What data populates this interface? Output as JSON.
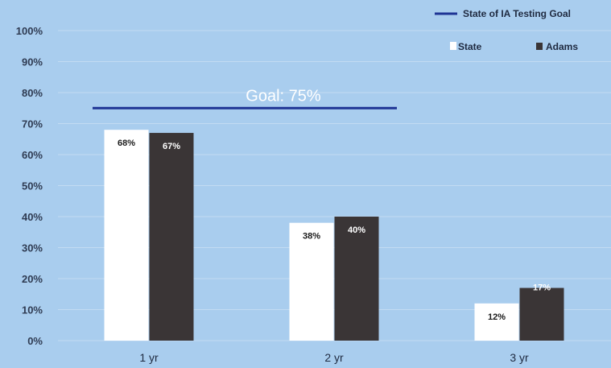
{
  "chart_data": {
    "type": "bar",
    "categories": [
      "1 yr",
      "2 yr",
      "3 yr"
    ],
    "series": [
      {
        "name": "State",
        "values": [
          68,
          38,
          12
        ],
        "labels": [
          "68%",
          "38%",
          "12%"
        ],
        "color": "#ffffff",
        "label_color": "#1a1a1a"
      },
      {
        "name": "Adams",
        "values": [
          67,
          40,
          17
        ],
        "labels": [
          "67%",
          "40%",
          "17%"
        ],
        "color": "#3a3536",
        "label_color": "#ffffff"
      }
    ],
    "y_ticks": [
      0,
      10,
      20,
      30,
      40,
      50,
      60,
      70,
      80,
      90,
      100
    ],
    "y_tick_labels": [
      "0%",
      "10%",
      "20%",
      "30%",
      "40%",
      "50%",
      "60%",
      "70%",
      "80%",
      "90%",
      "100%"
    ],
    "ylim": [
      0,
      100
    ],
    "grid": true,
    "goal": {
      "value": 75,
      "label": "Goal: 75%",
      "legend_label": "State of IA Testing Goal",
      "color": "#1e3494"
    },
    "legend_position": "top-right",
    "legend": {
      "state": "State",
      "adams": "Adams"
    },
    "background": "#a9cdee"
  }
}
